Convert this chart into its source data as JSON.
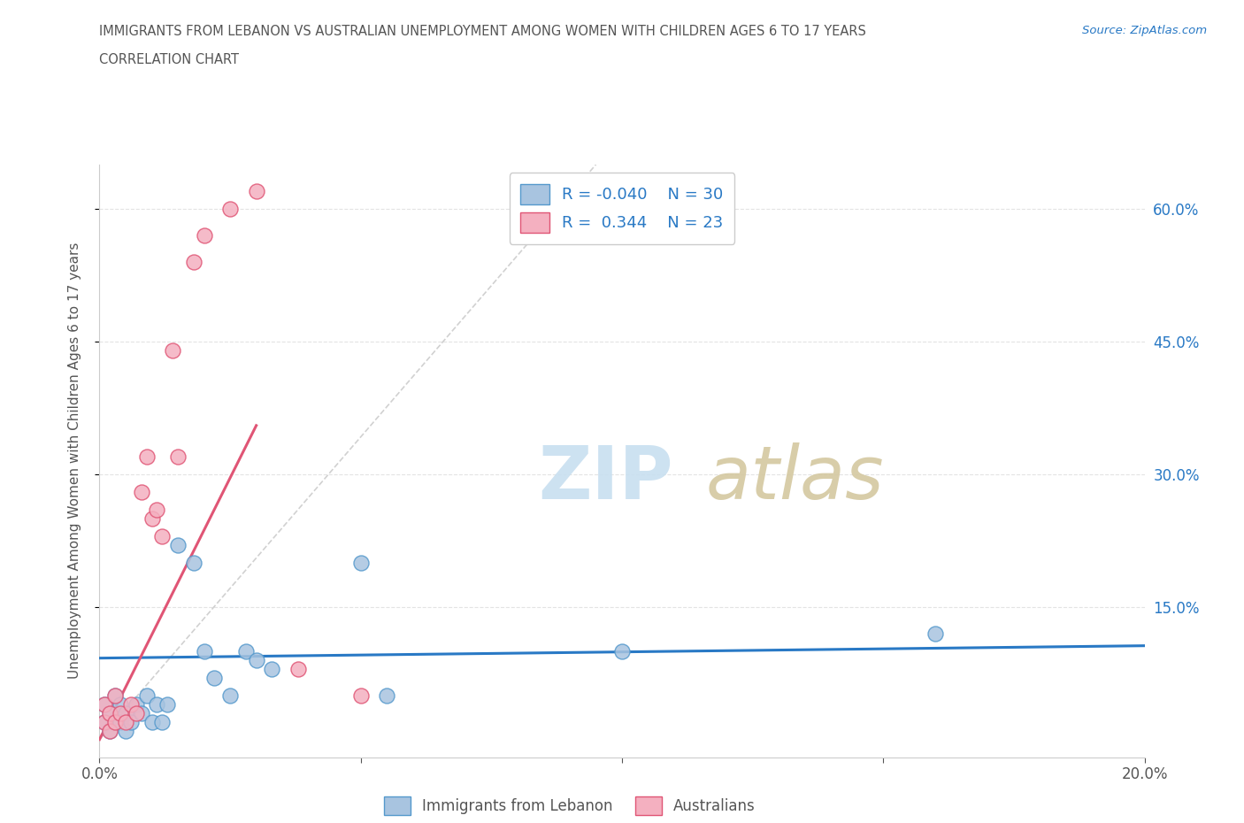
{
  "title_line1": "IMMIGRANTS FROM LEBANON VS AUSTRALIAN UNEMPLOYMENT AMONG WOMEN WITH CHILDREN AGES 6 TO 17 YEARS",
  "title_line2": "CORRELATION CHART",
  "source": "Source: ZipAtlas.com",
  "ylabel": "Unemployment Among Women with Children Ages 6 to 17 years",
  "xmin": 0.0,
  "xmax": 0.2,
  "ymin": -0.02,
  "ymax": 0.65,
  "xticks": [
    0.0,
    0.05,
    0.1,
    0.15,
    0.2
  ],
  "xtick_labels": [
    "0.0%",
    "",
    "",
    "",
    "20.0%"
  ],
  "ytick_positions": [
    0.15,
    0.3,
    0.45,
    0.6
  ],
  "ytick_labels": [
    "15.0%",
    "30.0%",
    "45.0%",
    "60.0%"
  ],
  "blue_scatter_x": [
    0.001,
    0.001,
    0.002,
    0.002,
    0.003,
    0.003,
    0.004,
    0.004,
    0.005,
    0.005,
    0.006,
    0.007,
    0.008,
    0.009,
    0.01,
    0.011,
    0.012,
    0.013,
    0.015,
    0.018,
    0.02,
    0.022,
    0.025,
    0.028,
    0.03,
    0.033,
    0.05,
    0.055,
    0.1,
    0.16
  ],
  "blue_scatter_y": [
    0.02,
    0.04,
    0.01,
    0.03,
    0.02,
    0.05,
    0.02,
    0.04,
    0.01,
    0.03,
    0.02,
    0.04,
    0.03,
    0.05,
    0.02,
    0.04,
    0.02,
    0.04,
    0.22,
    0.2,
    0.1,
    0.07,
    0.05,
    0.1,
    0.09,
    0.08,
    0.2,
    0.05,
    0.1,
    0.12
  ],
  "pink_scatter_x": [
    0.001,
    0.001,
    0.002,
    0.002,
    0.003,
    0.003,
    0.004,
    0.005,
    0.006,
    0.007,
    0.008,
    0.009,
    0.01,
    0.011,
    0.012,
    0.014,
    0.015,
    0.018,
    0.02,
    0.025,
    0.03,
    0.038,
    0.05
  ],
  "pink_scatter_y": [
    0.02,
    0.04,
    0.01,
    0.03,
    0.02,
    0.05,
    0.03,
    0.02,
    0.04,
    0.03,
    0.28,
    0.32,
    0.25,
    0.26,
    0.23,
    0.44,
    0.32,
    0.54,
    0.57,
    0.6,
    0.62,
    0.08,
    0.05
  ],
  "blue_r": -0.04,
  "blue_n": 30,
  "pink_r": 0.344,
  "pink_n": 23,
  "blue_dot_color": "#a8c4e0",
  "blue_edge_color": "#5599cc",
  "pink_dot_color": "#f4b0c0",
  "pink_edge_color": "#e05575",
  "blue_line_color": "#2979c5",
  "pink_line_color": "#e05575",
  "dash_line_color": "#cccccc",
  "background_color": "#ffffff",
  "grid_color": "#dddddd",
  "text_color": "#555555",
  "right_axis_color": "#2979c5",
  "watermark_zip_color": "#c8dff0",
  "watermark_atlas_color": "#d4c8a0"
}
